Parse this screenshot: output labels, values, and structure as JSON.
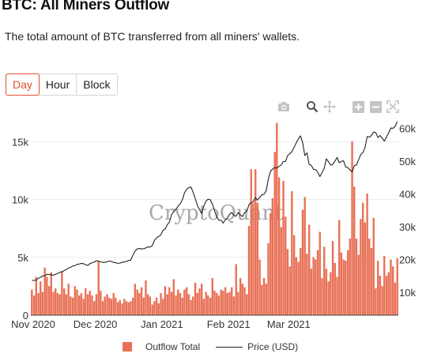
{
  "header": {
    "title": "BTC: All Miners Outflow",
    "subtitle": "The total amount of BTC transferred from all miners' wallets."
  },
  "tabs": [
    {
      "label": "Day",
      "active": true
    },
    {
      "label": "Hour",
      "active": false
    },
    {
      "label": "Block",
      "active": false
    }
  ],
  "modebar": [
    "camera-icon",
    "zoom-icon",
    "pan-icon",
    "zoom-in-icon",
    "zoom-out-icon",
    "autoscale-icon"
  ],
  "watermark": "CryptoQuant",
  "colors": {
    "bar": "#ea7055",
    "bar_stroke": "#e06448",
    "price_line": "#222222",
    "accent": "#e0502e"
  },
  "chart_data": {
    "type": "bar",
    "x_ticks": [
      "Nov 2020",
      "Dec 2020",
      "Jan 2021",
      "Feb 2021",
      "Mar 2021"
    ],
    "y_left_ticks": [
      "0",
      "5k",
      "10k",
      "15k"
    ],
    "y_left_range": [
      0,
      17000
    ],
    "y_right_ticks": [
      "10k",
      "20k",
      "30k",
      "40k",
      "50k",
      "60k"
    ],
    "y_right_range": [
      3000,
      63000
    ],
    "grid": true,
    "legend_position": "bottom",
    "series": [
      {
        "name": "Outflow Total",
        "type": "bar",
        "values": [
          2200,
          1700,
          3300,
          1900,
          2900,
          2000,
          4100,
          3300,
          2500,
          3700,
          2000,
          2300,
          1900,
          1800,
          3800,
          2300,
          1800,
          2700,
          1600,
          1500,
          2500,
          2200,
          1700,
          1900,
          1400,
          2300,
          1800,
          2100,
          1700,
          1200,
          1800,
          4700,
          2100,
          1200,
          1600,
          1800,
          1500,
          1400,
          1900,
          1500,
          1100,
          1300,
          1000,
          1400,
          1200,
          1100,
          1200,
          1500,
          2700,
          2200,
          1900,
          2400,
          1500,
          3000,
          1800,
          1600,
          900,
          1200,
          1500,
          1000,
          1900,
          1400,
          2500,
          1800,
          2400,
          2000,
          3100,
          1700,
          2200,
          1900,
          1500,
          2200,
          2400,
          1800,
          1300,
          1600,
          2800,
          1900,
          2300,
          2700,
          1400,
          2000,
          1700,
          1500,
          3200,
          2100,
          1900,
          1700,
          2200,
          2100,
          2400,
          1900,
          2000,
          2400,
          1600,
          4400,
          2000,
          3200,
          2700,
          2400,
          1800,
          7700,
          12600,
          9700,
          12600,
          9700,
          4800,
          2600,
          3200,
          2700,
          6200,
          8800,
          10100,
          14100,
          16600,
          11900,
          7600,
          11600,
          8500,
          5700,
          4200,
          10700,
          6900,
          5000,
          4600,
          5800,
          9100,
          10200,
          5300,
          7800,
          4000,
          5000,
          4800,
          5600,
          7200,
          3200,
          5900,
          4000,
          2900,
          3700,
          6400,
          4500,
          3300,
          8200,
          5400,
          4800,
          4700,
          5600,
          6600,
          15000,
          11100,
          6600,
          5200,
          8300,
          9700,
          8000,
          10500,
          6600,
          5800,
          8400,
          2300,
          4700,
          3400,
          2500,
          5100,
          3400,
          3700,
          4800,
          4200,
          2800,
          4900
        ]
      },
      {
        "name": "Price (USD)",
        "type": "line",
        "values": [
          13600,
          13600,
          13700,
          14300,
          14500,
          15000,
          15000,
          15500,
          15400,
          15300,
          15200,
          15500,
          15700,
          16100,
          16200,
          16600,
          16900,
          17400,
          17600,
          18000,
          18100,
          18500,
          18600,
          18800,
          18700,
          18400,
          18200,
          18700,
          19000,
          19200,
          19600,
          19500,
          19300,
          19100,
          19100,
          19300,
          19500,
          19400,
          19100,
          19000,
          18800,
          18900,
          19100,
          19300,
          19400,
          19700,
          19800,
          21300,
          22600,
          23200,
          23400,
          23200,
          23300,
          23500,
          23800,
          23800,
          24200,
          25800,
          26600,
          27000,
          27500,
          28900,
          29300,
          30600,
          31400,
          33700,
          34600,
          35300,
          36200,
          37000,
          38200,
          40300,
          41400,
          41900,
          42100,
          40500,
          38600,
          36500,
          35200,
          34000,
          36300,
          37800,
          38400,
          38200,
          36800,
          34900,
          32900,
          32000,
          32000,
          31100,
          32100,
          32700,
          33800,
          34300,
          33400,
          33200,
          34300,
          33600,
          33100,
          34300,
          34700,
          36700,
          37400,
          37600,
          38900,
          38100,
          39000,
          39700,
          39900,
          40900,
          44500,
          46800,
          47600,
          48000,
          47900,
          48400,
          48800,
          49900,
          49900,
          51700,
          52300,
          52900,
          54200,
          55600,
          56800,
          57700,
          55600,
          51700,
          52500,
          49000,
          48700,
          47500,
          47400,
          46600,
          45300,
          46500,
          47800,
          50700,
          49800,
          48800,
          49000,
          50000,
          51100,
          49500,
          49900,
          50100,
          48200,
          48000,
          47300,
          46700,
          48600,
          48800,
          50400,
          52000,
          52600,
          54100,
          57500,
          57300,
          57800,
          58900,
          58700,
          57200,
          57800,
          57000,
          56100,
          57400,
          58600,
          60100,
          60000,
          60600,
          62000
        ]
      }
    ]
  },
  "legend": [
    {
      "label": "Outflow Total"
    },
    {
      "label": "Price (USD)"
    }
  ]
}
